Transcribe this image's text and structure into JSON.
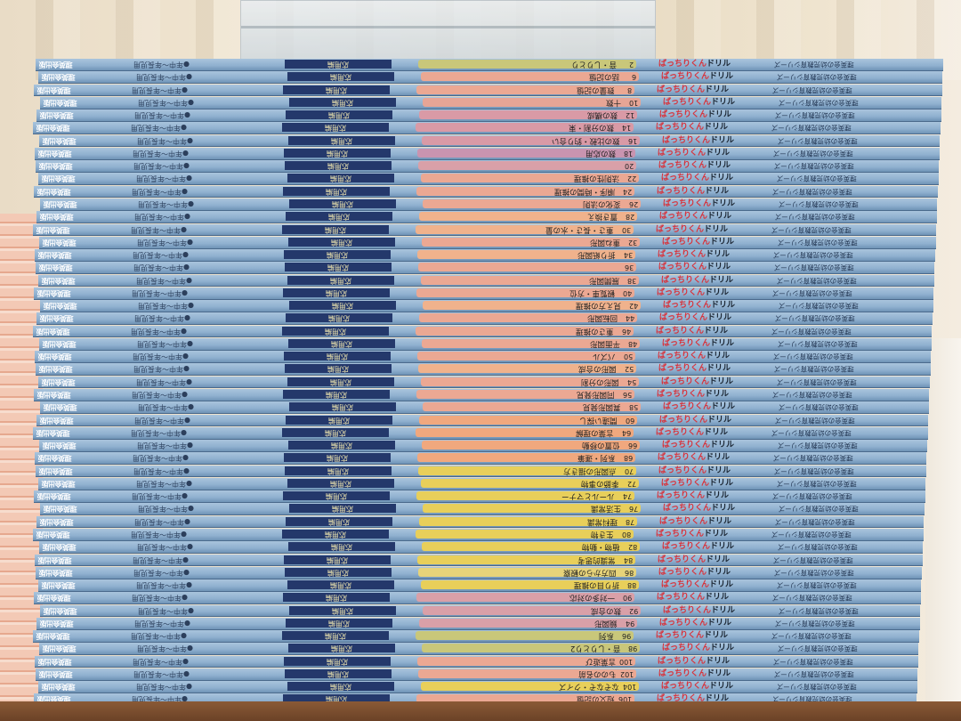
{
  "scene": {
    "description_labels": {
      "publisher": "理英会出版",
      "grade": "●年中〜年長児用",
      "edition": "応用編",
      "logo_accent": "ばっちりくん",
      "logo": "ドリル",
      "series": "理英会の幼児教育シリーズ"
    },
    "colors": {
      "spine": "#8fb0cf",
      "navy_band": "#24386b",
      "logo_red": "#d8323a"
    }
  },
  "spines": [
    {
      "num": "2",
      "title": "音・しりとり",
      "color": "#c9c77a"
    },
    {
      "num": "6",
      "title": "話の記憶",
      "color": "#eba893"
    },
    {
      "num": "8",
      "title": "数量の記憶",
      "color": "#eba893"
    },
    {
      "num": "10",
      "title": "十数",
      "color": "#e6a596"
    },
    {
      "num": "12",
      "title": "数の構成",
      "color": "#d99aa6"
    },
    {
      "num": "14",
      "title": "数の分割・束",
      "color": "#d99aa6"
    },
    {
      "num": "16",
      "title": "数の比較・釣り合い",
      "color": "#d99aa6"
    },
    {
      "num": "18",
      "title": "数の応用",
      "color": "#c994b0"
    },
    {
      "num": "20",
      "title": "",
      "color": "#d9a0a8"
    },
    {
      "num": "22",
      "title": "法則性の推理",
      "color": "#eba893"
    },
    {
      "num": "24",
      "title": "順序・時間の推理",
      "color": "#eba893"
    },
    {
      "num": "26",
      "title": "変化の法則",
      "color": "#eba893"
    },
    {
      "num": "28",
      "title": "置き換え",
      "color": "#f0b28c"
    },
    {
      "num": "30",
      "title": "重さ・長さ・水の量",
      "color": "#f0b28c"
    },
    {
      "num": "32",
      "title": "重ね図形",
      "color": "#eba893"
    },
    {
      "num": "34",
      "title": "折り紙図形",
      "color": "#f0b28c"
    },
    {
      "num": "36",
      "title": "",
      "color": "#eba893"
    },
    {
      "num": "38",
      "title": "展開図形",
      "color": "#eba893"
    },
    {
      "num": "40",
      "title": "観覧車・方位",
      "color": "#eba893"
    },
    {
      "num": "42",
      "title": "見え方の推理",
      "color": "#f0b28c"
    },
    {
      "num": "44",
      "title": "回転図形",
      "color": "#eba893"
    },
    {
      "num": "46",
      "title": "重さの推理",
      "color": "#eba893"
    },
    {
      "num": "48",
      "title": "平面図形",
      "color": "#eba893"
    },
    {
      "num": "50",
      "title": "パズル",
      "color": "#eba893"
    },
    {
      "num": "52",
      "title": "図形の合成",
      "color": "#f0b28c"
    },
    {
      "num": "54",
      "title": "図形の分割",
      "color": "#eba893"
    },
    {
      "num": "56",
      "title": "同図形発見",
      "color": "#eba893"
    },
    {
      "num": "58",
      "title": "異図形発見",
      "color": "#eba893"
    },
    {
      "num": "60",
      "title": "間違い探し",
      "color": "#f0a87e"
    },
    {
      "num": "64",
      "title": "言葉の理解",
      "color": "#f0a87e"
    },
    {
      "num": "66",
      "title": "位置の移動",
      "color": "#f0a87e"
    },
    {
      "num": "68",
      "title": "系列・運筆",
      "color": "#f0a87e"
    },
    {
      "num": "70",
      "title": "点図形の描き方",
      "color": "#e8cf5a"
    },
    {
      "num": "72",
      "title": "季節の事物",
      "color": "#e8cf5a"
    },
    {
      "num": "74",
      "title": "ルールとマナー",
      "color": "#e8cf5a"
    },
    {
      "num": "76",
      "title": "生活常識",
      "color": "#e8cf5a"
    },
    {
      "num": "78",
      "title": "理科常識",
      "color": "#e8cf5a"
    },
    {
      "num": "80",
      "title": "生き物",
      "color": "#e8cf5a"
    },
    {
      "num": "82",
      "title": "植物・動物",
      "color": "#e8cf5a"
    },
    {
      "num": "84",
      "title": "常識的思考",
      "color": "#e8cf5a"
    },
    {
      "num": "86",
      "title": "四方からの観察",
      "color": "#e6d37a"
    },
    {
      "num": "88",
      "title": "折り目の推理",
      "color": "#e8cf5a"
    },
    {
      "num": "90",
      "title": "一対多の対応",
      "color": "#d9a0a8"
    },
    {
      "num": "92",
      "title": "数の合成",
      "color": "#d9a0a8"
    },
    {
      "num": "94",
      "title": "鏡図形",
      "color": "#d9a0a8"
    },
    {
      "num": "96",
      "title": "系列",
      "color": "#c9c77a"
    },
    {
      "num": "98",
      "title": "音・しりとり2",
      "color": "#c9c77a"
    },
    {
      "num": "100",
      "title": "言葉遊び",
      "color": "#eba893"
    },
    {
      "num": "102",
      "title": "ものの名前",
      "color": "#eba893"
    },
    {
      "num": "104",
      "title": "なぞなぞ・クイズ",
      "color": "#e8cf5a"
    },
    {
      "num": "106",
      "title": "短文の記憶",
      "color": "#eba893"
    },
    {
      "num": "110",
      "title": "長文の記憶",
      "color": "#eba893"
    }
  ]
}
